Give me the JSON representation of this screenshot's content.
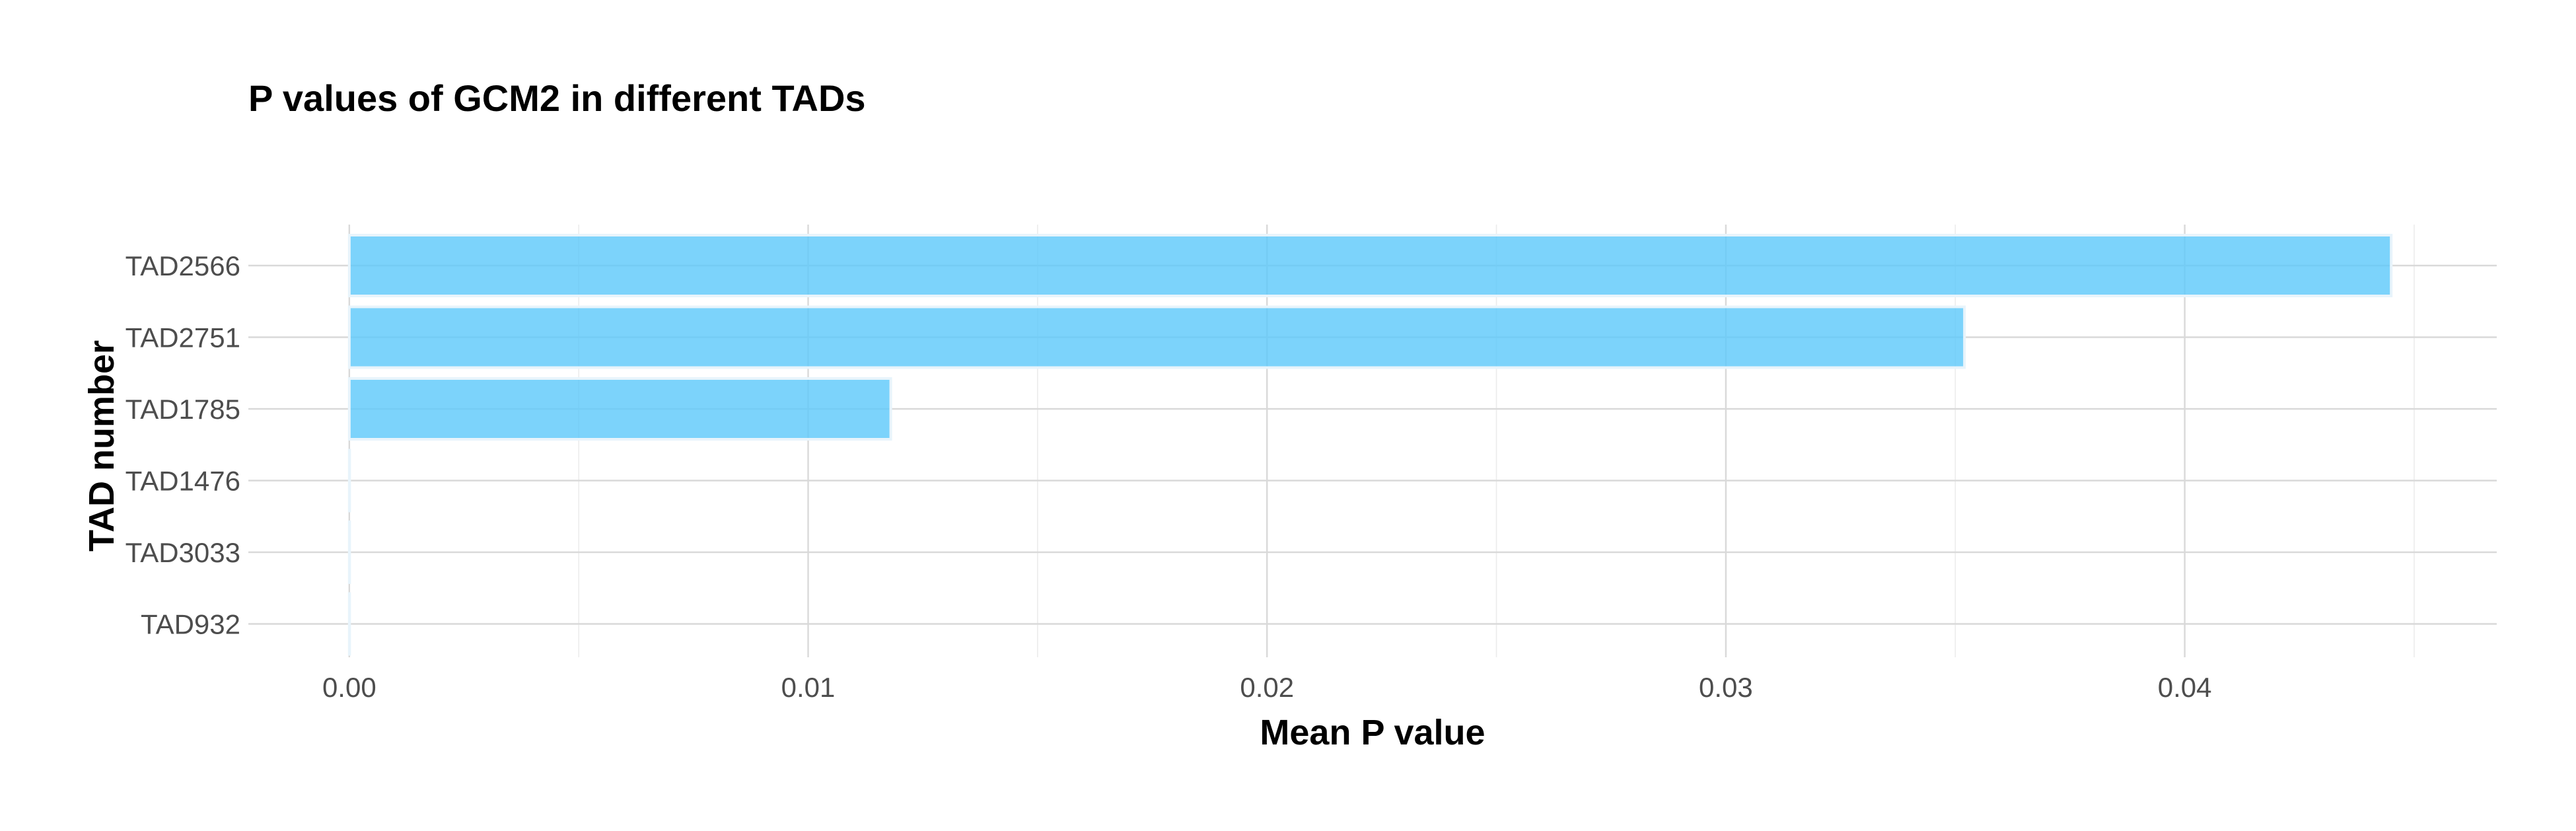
{
  "chart_data": {
    "type": "bar",
    "orientation": "horizontal",
    "title": "P values of GCM2 in different TADs",
    "xlabel": "Mean P value",
    "ylabel": "TAD number",
    "categories": [
      "TAD2566",
      "TAD2751",
      "TAD1785",
      "TAD1476",
      "TAD3033",
      "TAD932"
    ],
    "values": [
      0.0445,
      0.0352,
      0.0118,
      0.0,
      0.0,
      0.0
    ],
    "xlim": [
      -0.0022,
      0.0468
    ],
    "xticks": [
      0.0,
      0.01,
      0.02,
      0.03,
      0.04
    ],
    "xtick_labels": [
      "0.00",
      "0.01",
      "0.02",
      "0.03",
      "0.04"
    ],
    "grid": true,
    "bar_color": "#5BC8FA",
    "bar_opacity": 0.8
  }
}
